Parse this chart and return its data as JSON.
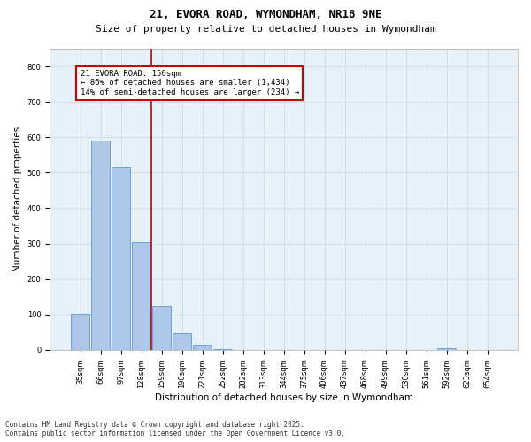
{
  "title_line1": "21, EVORA ROAD, WYMONDHAM, NR18 9NE",
  "title_line2": "Size of property relative to detached houses in Wymondham",
  "xlabel": "Distribution of detached houses by size in Wymondham",
  "ylabel": "Number of detached properties",
  "bar_labels": [
    "35sqm",
    "66sqm",
    "97sqm",
    "128sqm",
    "159sqm",
    "190sqm",
    "221sqm",
    "252sqm",
    "282sqm",
    "313sqm",
    "344sqm",
    "375sqm",
    "406sqm",
    "437sqm",
    "468sqm",
    "499sqm",
    "530sqm",
    "561sqm",
    "592sqm",
    "623sqm",
    "654sqm"
  ],
  "bar_values": [
    102,
    590,
    515,
    305,
    125,
    47,
    14,
    2,
    0,
    0,
    0,
    0,
    0,
    0,
    0,
    0,
    0,
    0,
    5,
    0,
    0
  ],
  "bar_color": "#aec7e8",
  "bar_edge_color": "#5b9bd5",
  "vline_color": "#cc0000",
  "annotation_text": "21 EVORA ROAD: 150sqm\n← 86% of detached houses are smaller (1,434)\n14% of semi-detached houses are larger (234) →",
  "annotation_box_color": "#cc0000",
  "annotation_fill": "#ffffff",
  "ylim": [
    0,
    850
  ],
  "yticks": [
    0,
    100,
    200,
    300,
    400,
    500,
    600,
    700,
    800
  ],
  "grid_color": "#c8d8e8",
  "background_color": "#e8f0f8",
  "footer_line1": "Contains HM Land Registry data © Crown copyright and database right 2025.",
  "footer_line2": "Contains public sector information licensed under the Open Government Licence v3.0.",
  "title_fontsize": 9,
  "subtitle_fontsize": 8,
  "axis_label_fontsize": 7.5,
  "tick_fontsize": 6,
  "footer_fontsize": 5.5,
  "annotation_fontsize": 6.5
}
